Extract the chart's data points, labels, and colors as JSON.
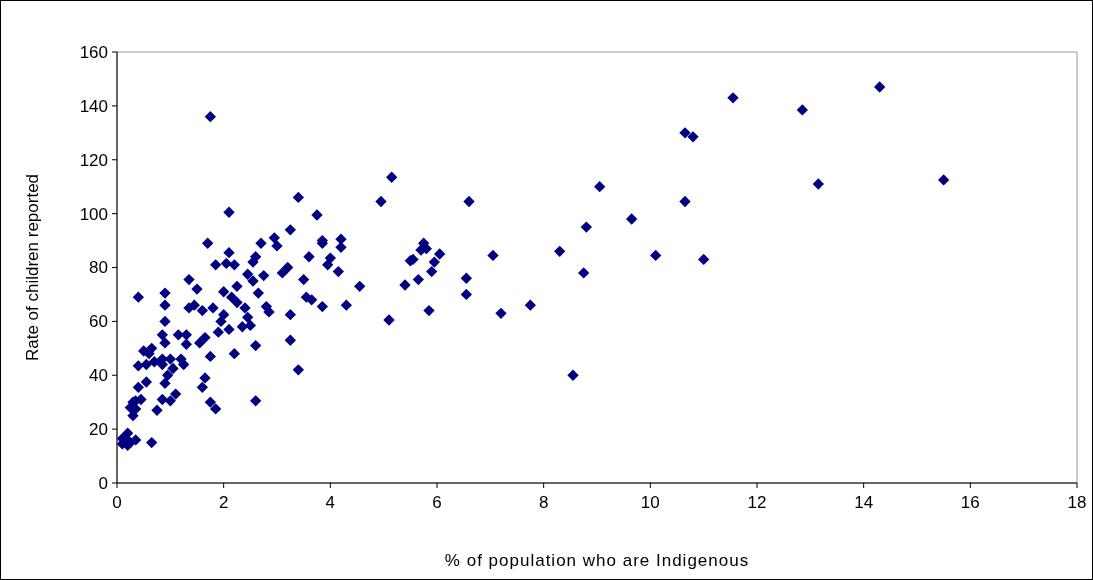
{
  "chart_data": {
    "type": "scatter",
    "xlabel": "% of population who are Indigenous",
    "ylabel": "Rate of children reported",
    "xlim": [
      0,
      18
    ],
    "xticks": [
      0,
      2,
      4,
      6,
      8,
      10,
      12,
      14,
      16,
      18
    ],
    "ylim": [
      0,
      160
    ],
    "yticks": [
      0,
      20,
      40,
      60,
      80,
      100,
      120,
      140,
      160
    ],
    "grid": false,
    "marker": "diamond",
    "series": [
      {
        "color": "#000080",
        "x": [
          11.55,
          12.85,
          14.3,
          10.65,
          10.8,
          13.15,
          15.5,
          9.05,
          10.65,
          9.65,
          8.8,
          10.1,
          11.0,
          8.3,
          8.75,
          7.75,
          7.2,
          7.05,
          8.55,
          6.6,
          6.55,
          6.55,
          5.15,
          4.95,
          5.1,
          6.05,
          5.95,
          5.9,
          5.85,
          5.75,
          5.7,
          5.8,
          5.55,
          5.5,
          5.4,
          5.65,
          4.55,
          4.3,
          4.2,
          4.2,
          4.15,
          4.0,
          3.95,
          3.85,
          3.85,
          3.75,
          3.65,
          3.55,
          3.6,
          3.5,
          3.85,
          3.4,
          3.4,
          3.25,
          3.2,
          3.1,
          3.0,
          2.95,
          3.25,
          3.25,
          2.85,
          2.8,
          2.75,
          2.7,
          2.65,
          2.6,
          2.55,
          2.6,
          2.6,
          2.55,
          2.45,
          2.5,
          2.45,
          2.4,
          2.35,
          2.25,
          2.25,
          2.2,
          2.15,
          2.1,
          2.1,
          2.05,
          2.0,
          2.0,
          2.1,
          2.2,
          1.95,
          1.85,
          1.9,
          1.8,
          1.75,
          1.75,
          1.7,
          1.65,
          1.6,
          1.55,
          1.65,
          1.6,
          1.75,
          1.85,
          1.5,
          1.45,
          1.35,
          1.35,
          1.3,
          1.3,
          1.25,
          1.2,
          1.15,
          1.1,
          1.05,
          1.0,
          1.0,
          0.95,
          0.9,
          0.9,
          0.9,
          0.85,
          0.9,
          0.85,
          0.85,
          0.9,
          0.85,
          0.75,
          0.7,
          0.65,
          0.6,
          0.55,
          0.55,
          0.5,
          0.45,
          0.4,
          0.4,
          0.4,
          0.35,
          0.35,
          0.3,
          0.25,
          0.3,
          0.65,
          0.35,
          0.25,
          0.2,
          0.15,
          0.1,
          0.1,
          0.2
        ],
        "values": [
          143,
          138.5,
          147,
          130,
          128.5,
          111,
          112.5,
          110,
          104.5,
          98,
          95,
          84.5,
          83,
          86,
          78,
          66,
          63,
          84.5,
          40,
          104.5,
          76,
          70,
          113.5,
          104.5,
          60.5,
          85,
          82,
          78.5,
          64,
          89,
          86.5,
          87,
          83,
          82.5,
          73.5,
          75.5,
          73,
          66,
          90.5,
          87.5,
          78.5,
          83.5,
          81,
          90,
          89,
          99.5,
          68,
          69,
          84,
          75.5,
          65.5,
          106,
          42,
          94,
          80,
          78,
          88,
          91,
          62.5,
          53,
          63.5,
          65.5,
          77,
          89,
          70.5,
          84,
          82,
          51,
          30.5,
          75,
          77.5,
          58.5,
          61.5,
          65,
          58,
          73,
          67,
          81,
          69,
          85.5,
          100.5,
          81.5,
          71,
          62.5,
          57,
          48,
          60,
          81,
          56,
          65,
          136,
          47,
          89,
          54,
          64,
          52,
          39,
          35.5,
          30,
          27.5,
          72,
          66,
          75.5,
          65,
          55,
          51.5,
          44,
          46,
          55,
          33,
          42.5,
          46,
          30.5,
          40,
          70.5,
          66,
          60,
          55,
          52,
          46,
          44,
          37,
          31,
          27,
          45,
          50,
          48,
          44,
          37.5,
          49,
          31,
          69,
          43.5,
          35.5,
          30.5,
          27.5,
          25,
          28,
          30,
          15,
          16,
          15,
          18.5,
          17,
          14.5,
          16.5,
          14
        ]
      }
    ]
  }
}
